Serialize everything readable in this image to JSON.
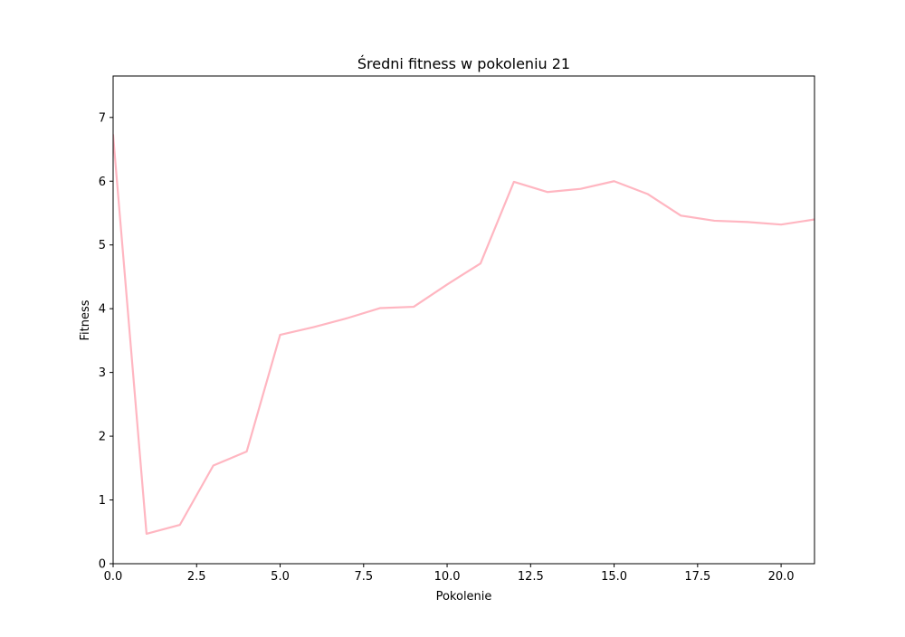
{
  "chart_data": {
    "type": "line",
    "title": "Średni fitness w pokoleniu 21",
    "xlabel": "Pokolenie",
    "ylabel": "Fitness",
    "xlim": [
      0,
      21
    ],
    "ylim": [
      0,
      7.65
    ],
    "xticks": [
      0,
      2.5,
      5,
      7.5,
      10,
      12.5,
      15,
      17.5,
      20
    ],
    "xtick_labels": [
      "0.0",
      "2.5",
      "5.0",
      "7.5",
      "10.0",
      "12.5",
      "15.0",
      "17.5",
      "20.0"
    ],
    "yticks": [
      0,
      1,
      2,
      3,
      4,
      5,
      6,
      7
    ],
    "ytick_labels": [
      "0",
      "1",
      "2",
      "3",
      "4",
      "5",
      "6",
      "7"
    ],
    "grid": false,
    "line_color": "#ffb6c1",
    "series": [
      {
        "x": [
          0,
          1,
          2,
          3,
          4,
          5,
          6,
          7,
          8,
          9,
          10,
          11,
          12,
          13,
          14,
          15,
          16,
          17,
          18,
          19,
          20,
          21
        ],
        "values": [
          6.72,
          0.47,
          0.61,
          1.54,
          1.76,
          3.59,
          3.71,
          3.85,
          4.01,
          4.03,
          4.38,
          4.71,
          5.99,
          5.83,
          5.88,
          6.0,
          5.8,
          5.46,
          5.38,
          5.36,
          5.32,
          5.4
        ]
      }
    ]
  }
}
